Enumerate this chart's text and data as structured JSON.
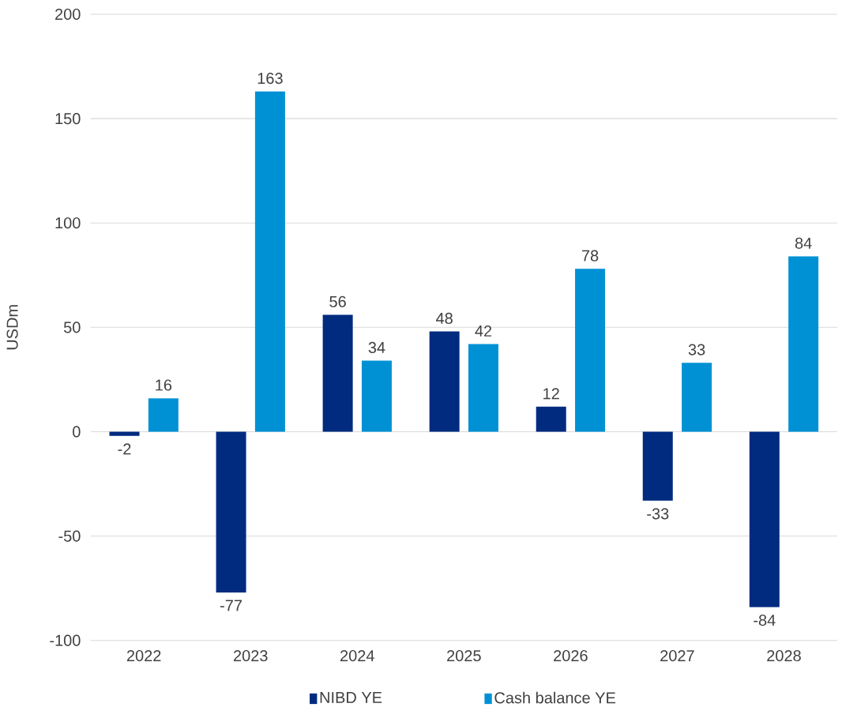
{
  "chart_data": {
    "type": "bar",
    "ylabel": "USDm",
    "categories": [
      "2022",
      "2023",
      "2024",
      "2025",
      "2026",
      "2027",
      "2028"
    ],
    "series": [
      {
        "name": "NIBD YE",
        "color": "#002b7f",
        "values": [
          -2,
          -77,
          56,
          48,
          12,
          -33,
          -84
        ]
      },
      {
        "name": "Cash balance YE",
        "color": "#0091d5",
        "values": [
          16,
          163,
          34,
          42,
          78,
          33,
          84
        ]
      }
    ],
    "ylim": [
      -100,
      200
    ],
    "yticks": [
      -100,
      -50,
      0,
      50,
      100,
      150,
      200
    ],
    "grid": "y",
    "legend": "bottom",
    "data_labels": true
  }
}
